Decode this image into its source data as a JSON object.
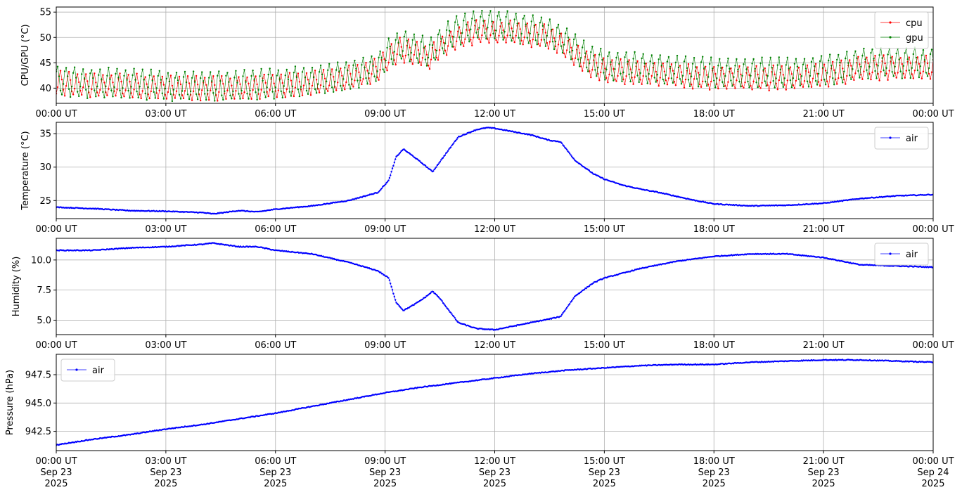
{
  "chart_data": [
    {
      "type": "line",
      "ylabel": "CPU/GPU (°C)",
      "ylim": [
        37,
        56
      ],
      "yticks": [
        40,
        45,
        50,
        55
      ],
      "xticks": [
        "00:00 UT",
        "03:00 UT",
        "06:00 UT",
        "09:00 UT",
        "12:00 UT",
        "15:00 UT",
        "18:00 UT",
        "21:00 UT",
        "00:00 UT"
      ],
      "xlim_hours": [
        0,
        24
      ],
      "grid": true,
      "legend_position": "top-right",
      "series": [
        {
          "name": "cpu",
          "color": "#ff0000",
          "x": [
            0,
            1,
            2,
            3,
            4,
            5,
            6,
            7,
            8,
            8.8,
            9.1,
            9.4,
            9.8,
            10.2,
            10.5,
            11,
            11.5,
            12,
            12.5,
            13,
            13.5,
            14,
            14.5,
            15,
            16,
            17,
            18,
            19,
            20,
            21,
            21.5,
            22,
            23,
            24
          ],
          "y": [
            41,
            40.5,
            40.5,
            40,
            40,
            40,
            40.5,
            41,
            42,
            43.5,
            46,
            47.5,
            47,
            46,
            48,
            50,
            51,
            51,
            51,
            50.5,
            50,
            48,
            45,
            43.5,
            43,
            42.5,
            42,
            42,
            42,
            42.5,
            43,
            44,
            44,
            44
          ],
          "amplitude": 2.2
        },
        {
          "name": "gpu",
          "color": "#008000",
          "x": [
            0,
            1,
            2,
            3,
            4,
            5,
            6,
            7,
            8,
            8.8,
            9.1,
            9.4,
            9.8,
            10.2,
            10.5,
            11,
            11.5,
            12,
            12.5,
            13,
            13.5,
            14,
            14.5,
            15,
            16,
            17,
            18,
            19,
            20,
            21,
            21.5,
            22,
            23,
            24
          ],
          "y": [
            41.5,
            41,
            41,
            40.5,
            40.5,
            40.5,
            41,
            41.5,
            42.5,
            44,
            47,
            48.5,
            48,
            47,
            49,
            51.5,
            52.5,
            52.5,
            52,
            51.5,
            51,
            49,
            46,
            44.5,
            44,
            43.5,
            43,
            43,
            43,
            43.5,
            44,
            45,
            45,
            45
          ],
          "amplitude": 2.8
        }
      ]
    },
    {
      "type": "line",
      "ylabel": "Temperature (°C)",
      "ylim": [
        22.3,
        36.7
      ],
      "yticks": [
        25,
        30,
        35
      ],
      "xticks": [
        "00:00 UT",
        "03:00 UT",
        "06:00 UT",
        "09:00 UT",
        "12:00 UT",
        "15:00 UT",
        "18:00 UT",
        "21:00 UT",
        "00:00 UT"
      ],
      "xlim_hours": [
        0,
        24
      ],
      "grid": true,
      "legend_position": "top-right",
      "series": [
        {
          "name": "air",
          "color": "#0000ff",
          "x": [
            0,
            1,
            2,
            3,
            4,
            4.3,
            5,
            5.5,
            6,
            7,
            8,
            8.8,
            9.1,
            9.3,
            9.5,
            9.8,
            10.1,
            10.3,
            10.5,
            11,
            11.5,
            11.8,
            12,
            12.5,
            13,
            13.5,
            13.8,
            14.2,
            14.7,
            15,
            15.5,
            16,
            16.5,
            17,
            17.5,
            18,
            19,
            20,
            21,
            22,
            23,
            24
          ],
          "y": [
            24,
            23.8,
            23.5,
            23.4,
            23.2,
            23,
            23.5,
            23.3,
            23.7,
            24.2,
            25,
            26.2,
            28,
            31.5,
            32.7,
            31.5,
            30.2,
            29.3,
            30.8,
            34.5,
            35.6,
            35.9,
            35.8,
            35.3,
            34.8,
            34,
            33.8,
            31,
            29,
            28.2,
            27.3,
            26.7,
            26.2,
            25.6,
            25,
            24.5,
            24.2,
            24.3,
            24.6,
            25.3,
            25.7,
            25.9
          ]
        }
      ]
    },
    {
      "type": "line",
      "ylabel": "Humidity (%)",
      "ylim": [
        3.8,
        11.8
      ],
      "yticks": [
        5.0,
        7.5,
        10.0
      ],
      "ytick_labels": [
        "5.0",
        "7.5",
        "10.0"
      ],
      "xticks": [
        "00:00 UT",
        "03:00 UT",
        "06:00 UT",
        "09:00 UT",
        "12:00 UT",
        "15:00 UT",
        "18:00 UT",
        "21:00 UT",
        "00:00 UT"
      ],
      "xlim_hours": [
        0,
        24
      ],
      "grid": true,
      "legend_position": "top-right",
      "series": [
        {
          "name": "air",
          "color": "#0000ff",
          "x": [
            0,
            1,
            2,
            3,
            4,
            4.3,
            5,
            5.5,
            6,
            7,
            8,
            8.8,
            9.1,
            9.3,
            9.5,
            9.8,
            10.1,
            10.3,
            10.5,
            11,
            11.5,
            12,
            12.5,
            13,
            13.5,
            13.8,
            14.2,
            14.7,
            15,
            16,
            17,
            18,
            19,
            20,
            21,
            22,
            23,
            24
          ],
          "y": [
            10.8,
            10.8,
            11,
            11.1,
            11.3,
            11.4,
            11.1,
            11.1,
            10.8,
            10.5,
            9.8,
            9.1,
            8.5,
            6.5,
            5.8,
            6.3,
            6.9,
            7.4,
            6.8,
            4.8,
            4.3,
            4.2,
            4.5,
            4.8,
            5.1,
            5.3,
            7,
            8.1,
            8.5,
            9.3,
            9.9,
            10.3,
            10.5,
            10.5,
            10.2,
            9.6,
            9.5,
            9.4
          ]
        }
      ]
    },
    {
      "type": "line",
      "ylabel": "Pressure (hPa)",
      "ylim": [
        940.8,
        949.3
      ],
      "yticks": [
        942.5,
        945.0,
        947.5
      ],
      "ytick_labels": [
        "942.5",
        "945.0",
        "947.5"
      ],
      "xticks": [
        "00:00 UT\nSep 23\n2025",
        "03:00 UT\nSep 23\n2025",
        "06:00 UT\nSep 23\n2025",
        "09:00 UT\nSep 23\n2025",
        "12:00 UT\nSep 23\n2025",
        "15:00 UT\nSep 23\n2025",
        "18:00 UT\nSep 23\n2025",
        "21:00 UT\nSep 23\n2025",
        "00:00 UT\nSep 24\n2025"
      ],
      "xlim_hours": [
        0,
        24
      ],
      "grid": true,
      "legend_position": "top-left",
      "series": [
        {
          "name": "air",
          "color": "#0000ff",
          "x": [
            0,
            1,
            2,
            3,
            4,
            5,
            6,
            7,
            8,
            9,
            10,
            11,
            12,
            13,
            14,
            15,
            16,
            17,
            18,
            19,
            20,
            21,
            22,
            23,
            24
          ],
          "y": [
            941.3,
            941.8,
            942.2,
            942.7,
            943.1,
            943.6,
            944.1,
            944.7,
            945.3,
            945.9,
            946.4,
            946.8,
            947.2,
            947.6,
            947.9,
            948.1,
            948.3,
            948.4,
            948.4,
            948.6,
            948.7,
            948.8,
            948.8,
            948.7,
            948.6
          ]
        }
      ]
    }
  ]
}
